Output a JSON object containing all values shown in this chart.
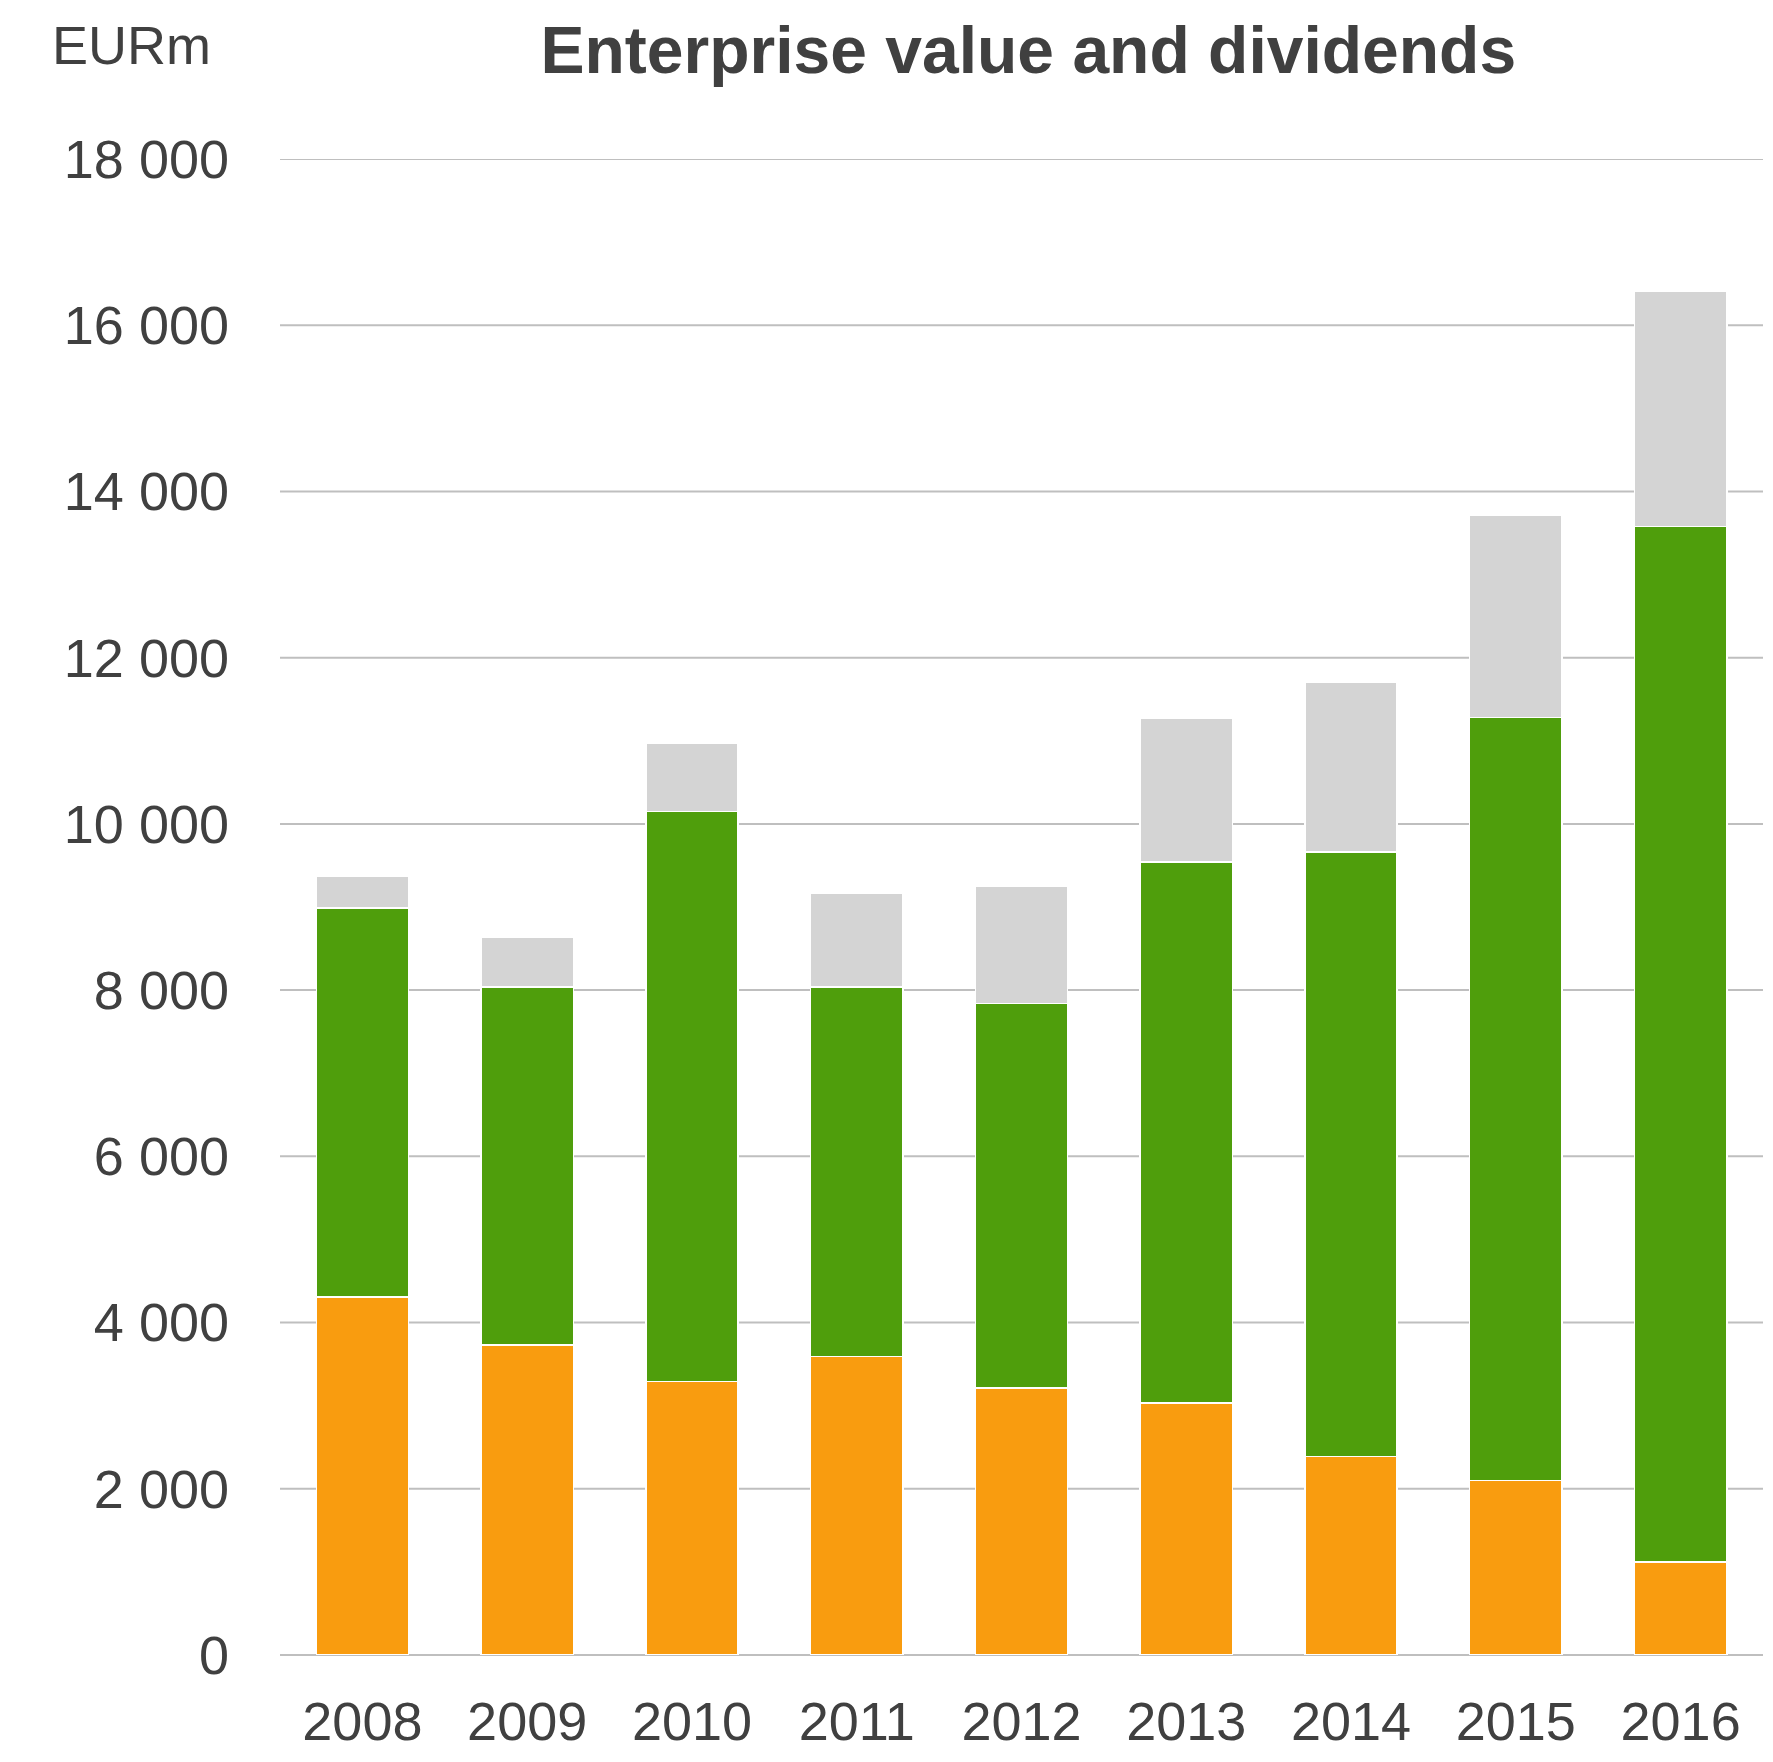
{
  "chart_data": {
    "type": "bar",
    "title": "Enterprise value and dividends",
    "ylabel": "EURm",
    "stacked": true,
    "grid": "y",
    "categories": [
      "2008",
      "2009",
      "2010",
      "2011",
      "2012",
      "2013",
      "2014",
      "2015",
      "2016"
    ],
    "series": [
      {
        "color": "#f99c0f",
        "values": [
          4310,
          3730,
          3290,
          3590,
          3210,
          3030,
          2390,
          2100,
          1120
        ]
      },
      {
        "color": "#4f9e0c",
        "values": [
          4680,
          4310,
          6860,
          4450,
          4630,
          6510,
          7270,
          9180,
          12460
        ]
      },
      {
        "color": "#d4d4d4",
        "values": [
          380,
          600,
          820,
          1120,
          1410,
          1730,
          2050,
          2430,
          2830
        ]
      }
    ],
    "ylim": [
      0,
      18000
    ],
    "yticks": [
      0,
      {
        "value": 2000,
        "label": "2 000"
      },
      {
        "value": 4000,
        "label": "4 000"
      },
      {
        "value": 6000,
        "label": "6 000"
      },
      {
        "value": 8000,
        "label": "8 000"
      },
      {
        "value": 10000,
        "label": "10 000"
      },
      {
        "value": 12000,
        "label": "12 000"
      },
      {
        "value": 14000,
        "label": "14 000"
      },
      {
        "value": 16000,
        "label": "16 000"
      },
      {
        "value": 18000,
        "label": "18 000"
      }
    ]
  }
}
